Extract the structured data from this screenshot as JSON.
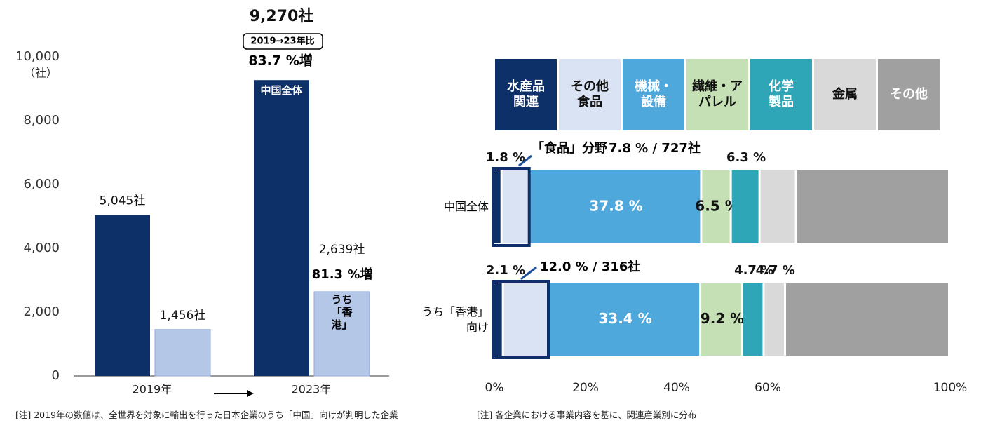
{
  "chart_data": [
    {
      "type": "bar",
      "categories": [
        "2019年",
        "2023年"
      ],
      "series": [
        {
          "name": "中国全体",
          "color": "#0e3068",
          "values": [
            5045,
            9270
          ],
          "value_labels": [
            "5,045社",
            "9,270社"
          ]
        },
        {
          "name": "うち「香港」",
          "color": "#b4c7e7",
          "values": [
            1456,
            2639
          ],
          "value_labels": [
            "1,456社",
            "2,639社"
          ]
        }
      ],
      "ylim": [
        0,
        10000
      ],
      "yticks": [
        0,
        {
          "value": 2000,
          "label": "2,000"
        },
        {
          "value": 4000,
          "label": "4,000"
        },
        {
          "value": 6000,
          "label": "6,000"
        },
        {
          "value": 8000,
          "label": "8,000"
        },
        {
          "value": 10000,
          "label": "10,000"
        }
      ],
      "y_unit": "（社）",
      "annotations": [
        "2019→23年比",
        "83.7 %増",
        "81.3 %増"
      ],
      "note": "[注]  2019年の数値は、全世界を対象に輸出を行った日本企業のうち「中国」向けが判明した企業"
    },
    {
      "type": "stacked_barh",
      "categories": [
        "中国全体",
        "うち「香港」向け"
      ],
      "series": [
        {
          "name": "水産品関連",
          "color": "#0e3068",
          "values": [
            1.8,
            2.1
          ],
          "value_labels": [
            "1.8 %",
            "2.1 %"
          ]
        },
        {
          "name": "その他食品",
          "color": "#dae3f3",
          "values": [
            6.0,
            9.9
          ],
          "value_labels": [
            null,
            null
          ]
        },
        {
          "name": "機械・設備",
          "color": "#4fa8dc",
          "values": [
            37.8,
            33.4
          ],
          "value_labels": [
            "37.8 %",
            "33.4 %"
          ]
        },
        {
          "name": "繊維・アパレル",
          "color": "#c5e0b4",
          "values": [
            6.5,
            9.2
          ],
          "value_labels": [
            "6.5 %",
            "9.2 %"
          ]
        },
        {
          "name": "化学製品",
          "color": "#2fa6b7",
          "values": [
            6.3,
            4.7
          ],
          "value_labels": [
            "6.3 %",
            "4.7 %"
          ]
        },
        {
          "name": "金属",
          "color": "#d9d9d9",
          "values": [
            8.0,
            4.7
          ],
          "value_labels": [
            null,
            "4.7 %"
          ]
        },
        {
          "name": "その他",
          "color": "#a0a0a0",
          "values": [
            33.6,
            36.0
          ],
          "value_labels": [
            null,
            null
          ]
        }
      ],
      "xlim": [
        0,
        100
      ],
      "xticks": [
        {
          "value": 0,
          "label": "0%"
        },
        {
          "value": 20,
          "label": "20%"
        },
        {
          "value": 40,
          "label": "40%"
        },
        {
          "value": 60,
          "label": "60%"
        },
        {
          "value": 100,
          "label": "100%"
        }
      ],
      "annotations": [
        "「食品」分野",
        "7.8 % / 727社",
        "12.0 % / 316社"
      ],
      "note": "[注]  各企業における事業内容を基に、関連産業別に分布"
    }
  ]
}
